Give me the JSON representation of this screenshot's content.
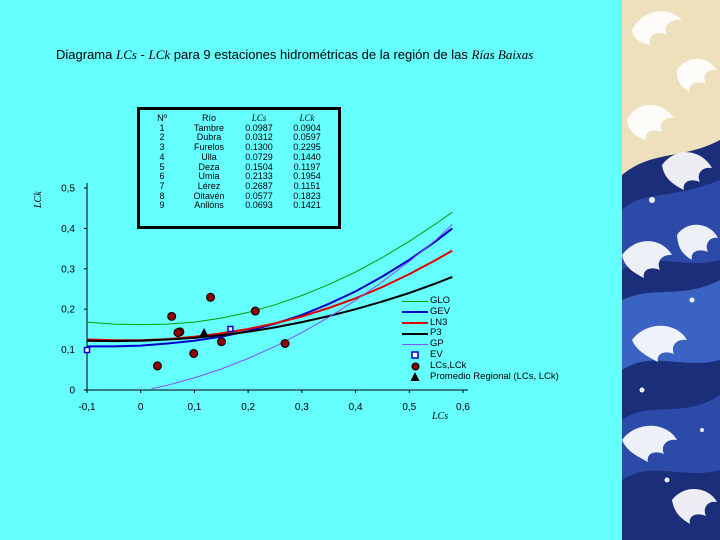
{
  "title": {
    "prefix": "Diagrama ",
    "lcs": "LCs",
    "sep": " - ",
    "lck": "LCk",
    "middle": " para 9 estaciones hidrométricas de la región de las ",
    "region": "Rías Baixas"
  },
  "colors": {
    "background": "#66ffff",
    "GLO": "#00a000",
    "GEV": "#0000cc",
    "LN3": "#e00000",
    "P3": "#000000",
    "GP": "#8a4dff",
    "points": "#8b0000",
    "EV": "#0000cc"
  },
  "table": {
    "headers": [
      "Nº",
      "Río",
      "LCs",
      "LCk"
    ],
    "rows": [
      [
        "1",
        "Tambre",
        "0.0987",
        "0.0904"
      ],
      [
        "2",
        "Dubra",
        "0.0312",
        "0.0597"
      ],
      [
        "3",
        "Furelos",
        "0.1300",
        "0.2295"
      ],
      [
        "4",
        "Ulla",
        "0.0729",
        "0.1440"
      ],
      [
        "5",
        "Deza",
        "0.1504",
        "0.1197"
      ],
      [
        "6",
        "Umia",
        "0.2133",
        "0.1954"
      ],
      [
        "7",
        "Lérez",
        "0.2687",
        "0.1151"
      ],
      [
        "8",
        "Oitavén",
        "0.0577",
        "0.1823"
      ],
      [
        "9",
        "Anllóns",
        "0.0693",
        "0.1421"
      ]
    ]
  },
  "chart_data": {
    "type": "scatter",
    "xlabel": "LCs",
    "ylabel": "LCk",
    "xlim": [
      -0.1,
      0.6
    ],
    "ylim": [
      0,
      0.5
    ],
    "xticks": [
      "-0,1",
      "0",
      "0,1",
      "0,2",
      "0,3",
      "0,4",
      "0,5",
      "0,6"
    ],
    "yticks": [
      "0",
      "0,1",
      "0,2",
      "0,3",
      "0,4",
      "0,5"
    ],
    "legend_position": "right",
    "series": [
      {
        "name": "GLO",
        "kind": "line",
        "x": [
          -0.1,
          -0.05,
          0,
          0.05,
          0.1,
          0.15,
          0.2,
          0.25,
          0.3,
          0.35,
          0.4,
          0.45,
          0.5,
          0.55,
          0.58
        ],
        "y": [
          0.168,
          0.163,
          0.162,
          0.163,
          0.168,
          0.178,
          0.192,
          0.211,
          0.234,
          0.261,
          0.292,
          0.328,
          0.368,
          0.412,
          0.44
        ]
      },
      {
        "name": "GEV",
        "kind": "line",
        "x": [
          -0.1,
          -0.05,
          0,
          0.05,
          0.1,
          0.15,
          0.2,
          0.25,
          0.3,
          0.35,
          0.4,
          0.45,
          0.5,
          0.55,
          0.58
        ],
        "y": [
          0.108,
          0.108,
          0.11,
          0.115,
          0.122,
          0.132,
          0.146,
          0.164,
          0.186,
          0.213,
          0.244,
          0.281,
          0.322,
          0.369,
          0.4
        ]
      },
      {
        "name": "LN3",
        "kind": "line",
        "x": [
          -0.1,
          -0.05,
          0,
          0.05,
          0.1,
          0.15,
          0.2,
          0.25,
          0.3,
          0.35,
          0.4,
          0.45,
          0.5,
          0.55,
          0.58
        ],
        "y": [
          0.125,
          0.123,
          0.123,
          0.126,
          0.132,
          0.14,
          0.151,
          0.165,
          0.182,
          0.203,
          0.227,
          0.255,
          0.287,
          0.322,
          0.345
        ]
      },
      {
        "name": "P3",
        "kind": "line",
        "x": [
          -0.1,
          -0.05,
          0,
          0.05,
          0.1,
          0.15,
          0.2,
          0.25,
          0.3,
          0.35,
          0.4,
          0.45,
          0.5,
          0.55,
          0.58
        ],
        "y": [
          0.122,
          0.121,
          0.122,
          0.125,
          0.129,
          0.136,
          0.144,
          0.155,
          0.168,
          0.183,
          0.2,
          0.219,
          0.24,
          0.264,
          0.28
        ]
      },
      {
        "name": "GP",
        "kind": "line",
        "x": [
          0.02,
          0.05,
          0.1,
          0.15,
          0.2,
          0.25,
          0.3,
          0.35,
          0.4,
          0.45,
          0.5,
          0.55,
          0.58
        ],
        "y": [
          0.003,
          0.012,
          0.03,
          0.052,
          0.078,
          0.108,
          0.142,
          0.18,
          0.222,
          0.268,
          0.318,
          0.372,
          0.41
        ]
      },
      {
        "name": "EV",
        "kind": "marker",
        "x": [
          -0.1,
          0.167
        ],
        "y": [
          0.099,
          0.151
        ]
      },
      {
        "name": "LCs,LCk",
        "kind": "marker",
        "x": [
          0.0987,
          0.0312,
          0.13,
          0.0729,
          0.1504,
          0.2133,
          0.2687,
          0.0577,
          0.0693
        ],
        "y": [
          0.0904,
          0.0597,
          0.2295,
          0.144,
          0.1197,
          0.1954,
          0.1151,
          0.1823,
          0.1421
        ]
      },
      {
        "name": "Promedio Regional (LCs, LCk)",
        "kind": "marker",
        "x": [
          0.118
        ],
        "y": [
          0.141
        ]
      }
    ]
  }
}
